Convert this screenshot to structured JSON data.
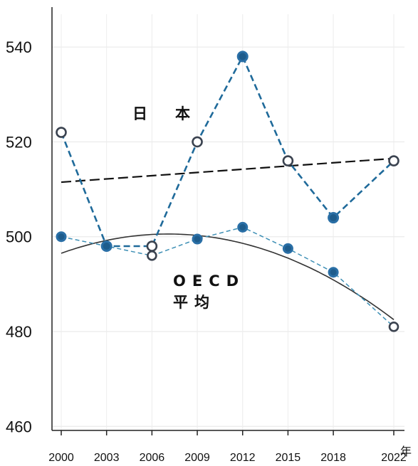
{
  "chart_data": {
    "type": "line",
    "categories": [
      "2000",
      "2003",
      "2006",
      "2009",
      "2012",
      "2015",
      "2018",
      "2022"
    ],
    "x_unit": "年",
    "ylim": [
      458,
      550
    ],
    "yticks": [
      "460",
      "480",
      "500",
      "520",
      "540"
    ],
    "grid": true,
    "series": [
      {
        "name": "日　本",
        "color": "#1f6a9a",
        "values": [
          522,
          498,
          498,
          520,
          538,
          516,
          504,
          516
        ],
        "markers": [
          "open",
          "filled",
          "open",
          "open",
          "filled",
          "open",
          "filled",
          "open"
        ]
      },
      {
        "name": "OECD",
        "name2": "平均",
        "color": "#3d8fb5",
        "values": [
          500,
          498,
          496,
          499.5,
          502,
          497.5,
          492.5,
          481
        ],
        "markers": [
          "filled",
          "filled",
          "open",
          "filled",
          "filled",
          "filled",
          "filled",
          "open"
        ]
      }
    ],
    "trendlines": [
      {
        "for": "日　本",
        "kind": "linear",
        "style": "dashed",
        "color": "#111111",
        "start": 511.5,
        "end": 516.5
      },
      {
        "for": "OECD",
        "kind": "quadratic",
        "style": "solid",
        "color": "#333333",
        "points": [
          [
            2000,
            496.5
          ],
          [
            2008,
            500.5
          ],
          [
            2022,
            482.5
          ]
        ]
      }
    ]
  }
}
